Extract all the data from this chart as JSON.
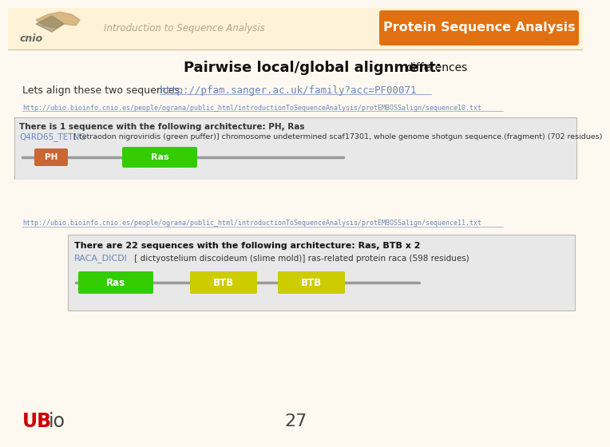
{
  "bg_color": "#fef9f0",
  "header_bg": "#fef3d8",
  "header_text": "Introduction to Sequence Analysis",
  "header_text_color": "#b0a890",
  "badge_text": "Protein Sequence Analysis",
  "badge_bg": "#e07010",
  "badge_text_color": "#ffffff",
  "title_bold": "Pairwise local/global alignment:",
  "title_light": "differences",
  "title_color": "#111111",
  "subtitle_plain": "Lets align these two sequences:",
  "subtitle_link": "http://pfam.sanger.ac.uk/family?acc=PF00071",
  "link_color": "#6688bb",
  "link1": "http://ubio.bioinfo.cnio.es/people/ograna/public_html/introductionToSequenceAnalysis/protEMBOSSalign/sequence10.txt",
  "link2": "http://ubio.bioinfo.cnio.es/people/ograna/public_html/introductionToSequenceAnalysis/protEMBOSSalign/sequence11.txt",
  "box1_title": "There is 1 sequence with the following architecture: PH, Ras",
  "box1_subtitle": "Q4RD65_TETNG",
  "box1_desc": " [ tetraodon nigroviridis (green puffer)] chromosome undetermined scaf17301, whole genome shotgun sequence.(fragment) (702 residues)",
  "box1_domain1_label": "PH",
  "box1_domain1_color": "#cc6633",
  "box1_domain2_label": "Ras",
  "box1_domain2_color": "#33cc00",
  "box2_title": "There are 22 sequences with the following architecture: Ras, BTB x 2",
  "box2_subtitle": "RACA_DICDI",
  "box2_desc": " [ dictyostelium discoideum (slime mold)] ras-related protein raca (598 residues)",
  "box2_domain1_label": "Ras",
  "box2_domain1_color": "#33cc00",
  "box2_domain2_label": "BTB",
  "box2_domain2_color": "#cccc00",
  "box2_domain3_label": "BTB",
  "box2_domain3_color": "#cccc00",
  "footer_ub_color": "#cc0000",
  "footer_io_color": "#444444",
  "page_number": "27",
  "page_number_color": "#444444"
}
